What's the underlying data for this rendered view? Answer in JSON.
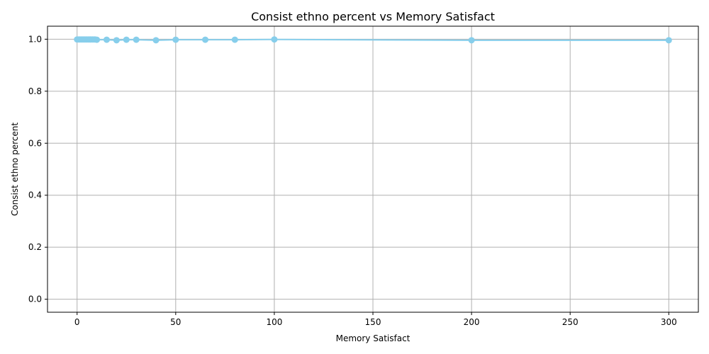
{
  "chart_data": {
    "type": "line",
    "title": "Consist ethno percent vs Memory Satisfact",
    "xlabel": "Memory Satisfact",
    "ylabel": "Consist ethno percent",
    "xlim": [
      -15,
      315
    ],
    "ylim": [
      -0.05,
      1.05
    ],
    "xticks": [
      0,
      50,
      100,
      150,
      200,
      250,
      300
    ],
    "yticks": [
      0.0,
      0.2,
      0.4,
      0.6,
      0.8,
      1.0
    ],
    "grid": true,
    "series": [
      {
        "name": "Consist ethno percent",
        "color": "#87ceeb",
        "marker": "circle",
        "x": [
          0,
          1,
          2,
          3,
          4,
          5,
          6,
          7,
          8,
          9,
          10,
          15,
          20,
          25,
          30,
          40,
          50,
          65,
          80,
          100,
          200,
          300
        ],
        "y": [
          0.999,
          0.999,
          0.999,
          0.999,
          0.999,
          0.999,
          0.999,
          0.999,
          0.999,
          0.999,
          0.998,
          0.998,
          0.996,
          0.998,
          0.998,
          0.996,
          0.998,
          0.998,
          0.998,
          0.999,
          0.996,
          0.996
        ]
      }
    ]
  }
}
